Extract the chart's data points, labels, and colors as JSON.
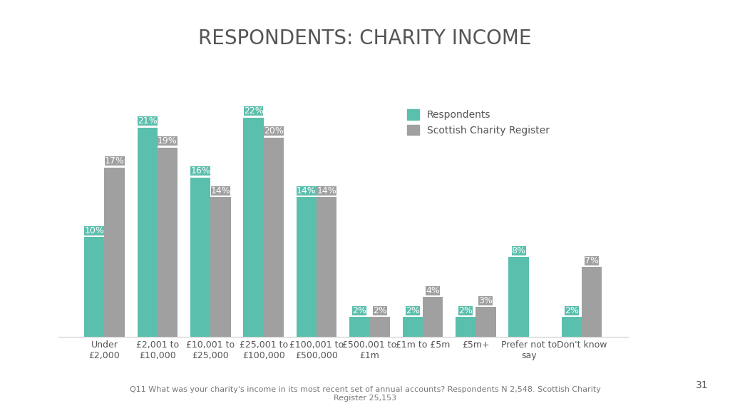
{
  "title": "RESPONDENTS: CHARITY INCOME",
  "categories": [
    "Under\n£2,000",
    "£2,001 to\n£10,000",
    "£10,001 to\n£25,000",
    "£25,001 to\n£100,000",
    "£100,001 to\n£500,000",
    "£500,001 to\n£1m",
    "£1m to £5m",
    "£5m+",
    "Prefer not to\nsay",
    "Don't know"
  ],
  "respondents": [
    10,
    21,
    16,
    22,
    14,
    2,
    2,
    2,
    8,
    2
  ],
  "charity_register": [
    17,
    19,
    14,
    20,
    14,
    2,
    4,
    3,
    null,
    7
  ],
  "respondents_color": "#5bbfad",
  "charity_register_color": "#a0a0a0",
  "background_color": "#ffffff",
  "title_fontsize": 20,
  "bar_label_fontsize": 9,
  "legend_labels": [
    "Respondents",
    "Scottish Charity Register"
  ],
  "footnote": "Q11 What was your charity's income in its most recent set of annual accounts? Respondents N 2,548. Scottish Charity\nRegister 25,153",
  "ylim": [
    0,
    28
  ],
  "bar_width": 0.38,
  "page_number": "31"
}
